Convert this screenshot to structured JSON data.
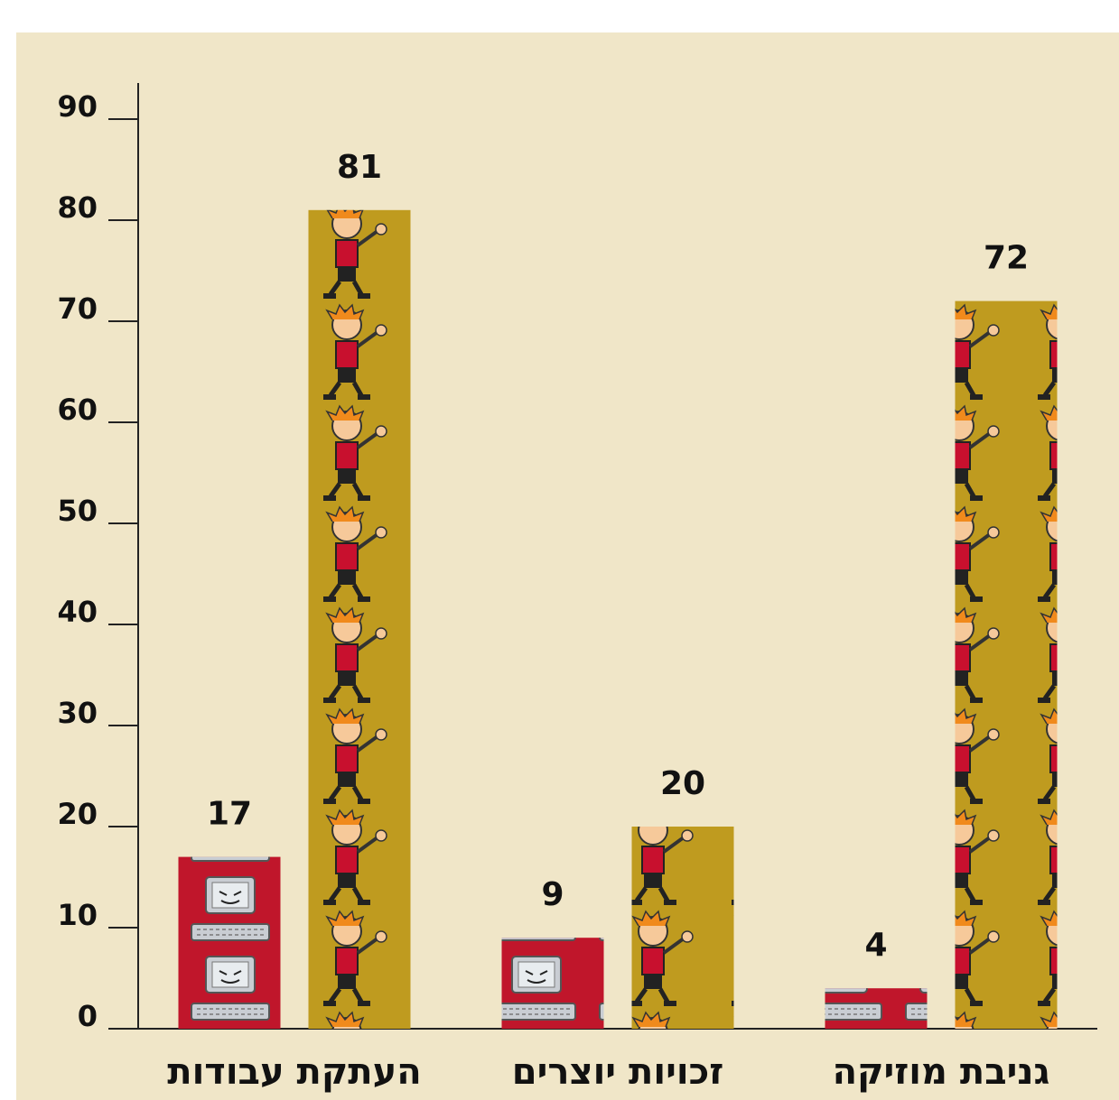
{
  "chart_data": {
    "type": "bar",
    "categories": [
      "העתקת עבודות",
      "זכויות יוצרים",
      "גניבת מוזיקה"
    ],
    "series": [
      {
        "color": "#c0162b",
        "values": [
          17,
          9,
          4
        ]
      },
      {
        "color": "#bf9b1f",
        "values": [
          81,
          20,
          72
        ]
      }
    ],
    "ylim": [
      0,
      90
    ],
    "yticks": [
      0,
      10,
      20,
      30,
      40,
      50,
      60,
      70,
      80,
      90
    ]
  }
}
